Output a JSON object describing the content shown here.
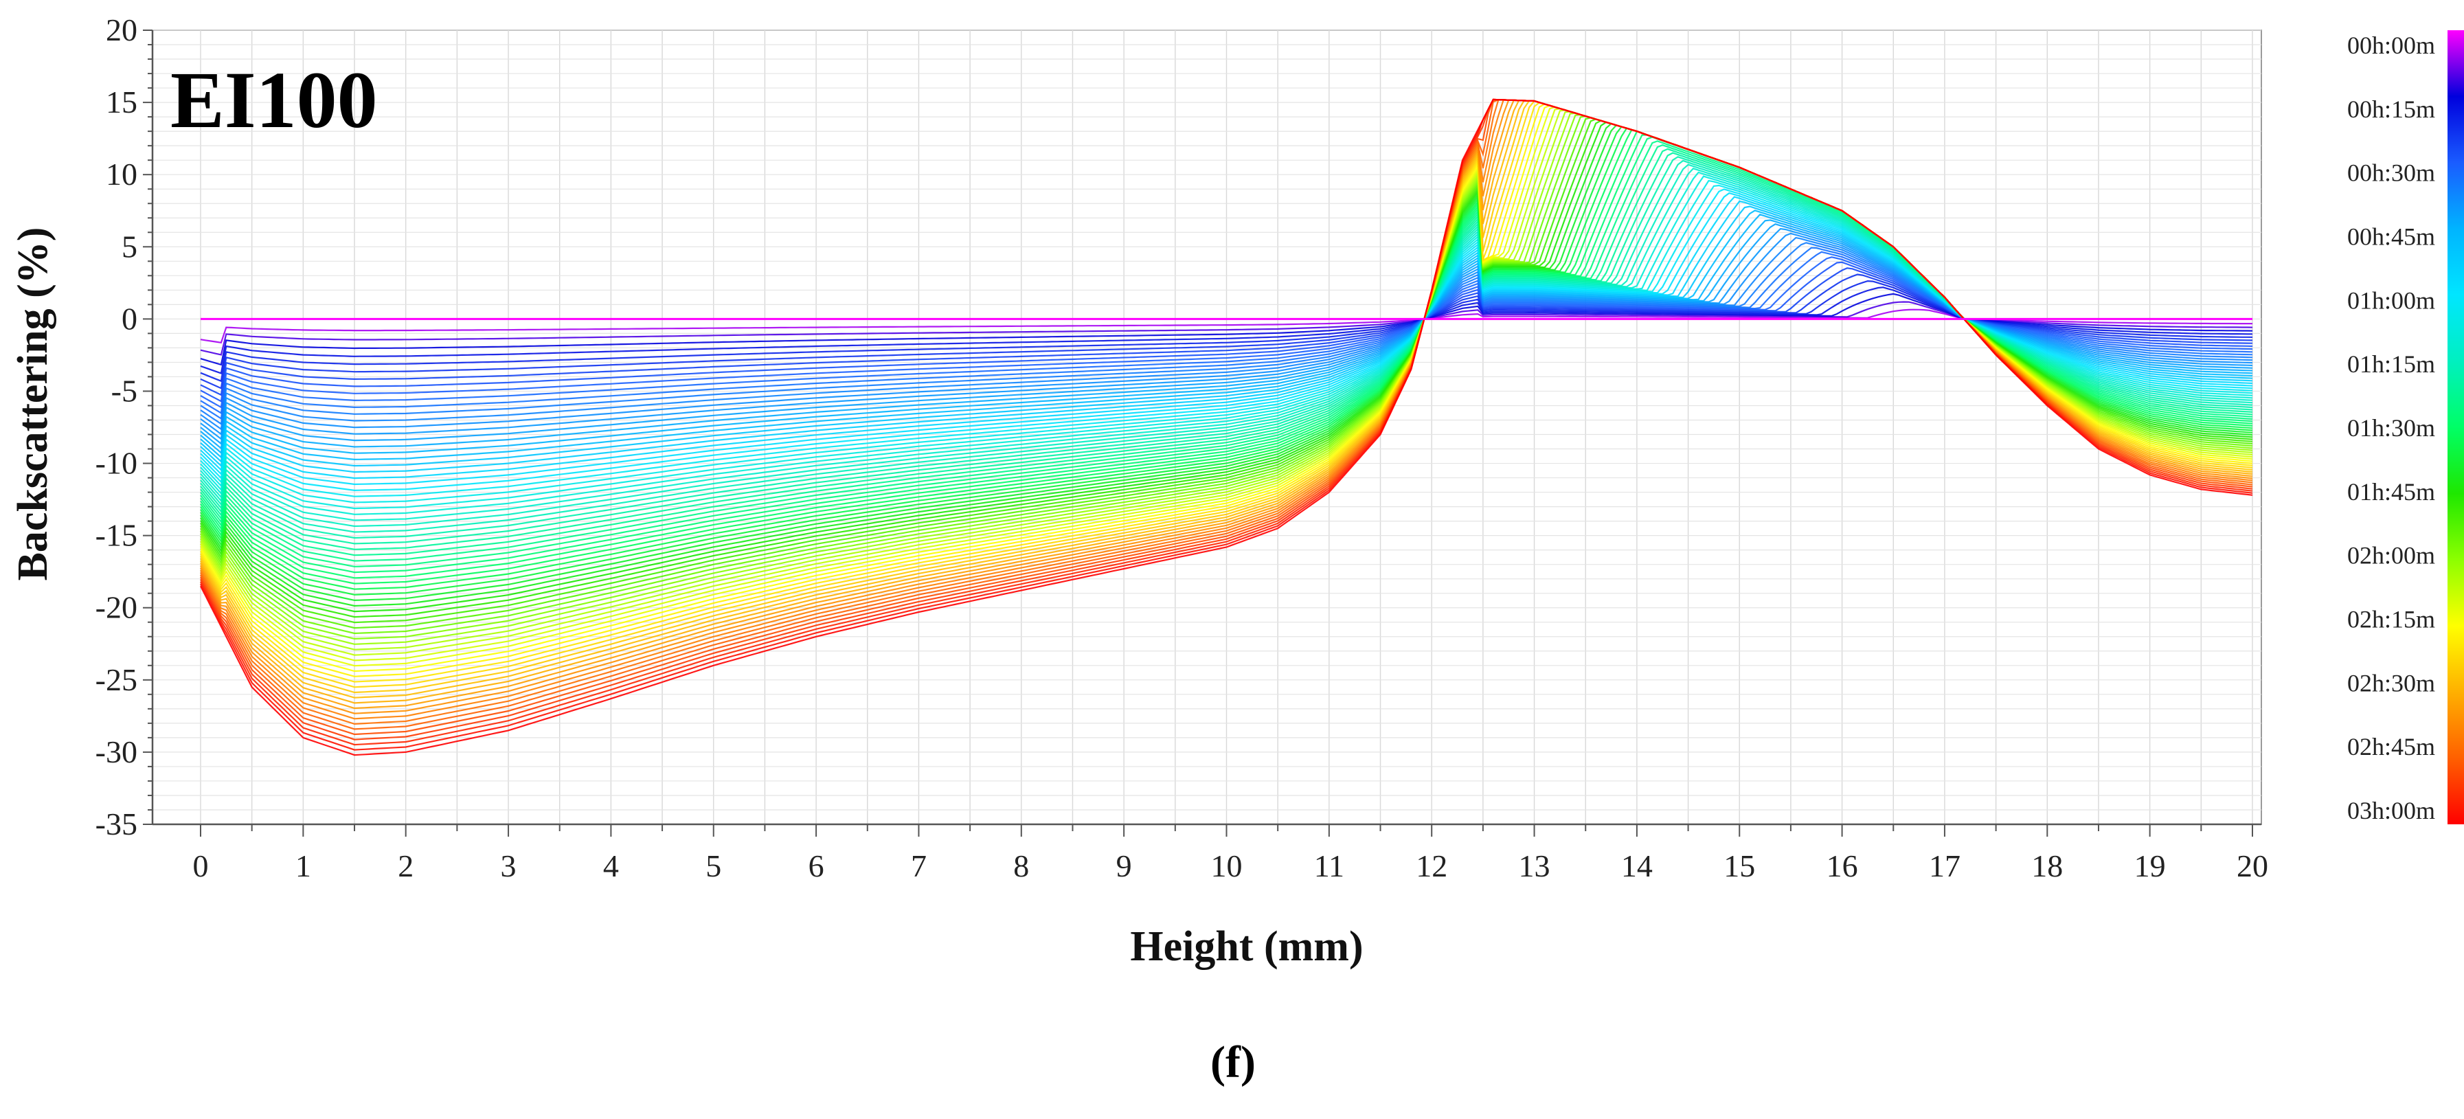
{
  "chart_data": {
    "type": "line",
    "title": "EI100",
    "xlabel": "Height (mm)",
    "ylabel": "Backscattering (%)",
    "caption": "(f)",
    "xlim": [
      0,
      20
    ],
    "ylim": [
      -35,
      20
    ],
    "xticks": [
      0,
      1,
      2,
      3,
      4,
      5,
      6,
      7,
      8,
      9,
      10,
      11,
      12,
      13,
      14,
      15,
      16,
      17,
      18,
      19,
      20
    ],
    "yticks": [
      20,
      15,
      10,
      5,
      0,
      -5,
      -10,
      -15,
      -20,
      -25,
      -30,
      -35
    ],
    "grid": true,
    "colorbar": {
      "label_position": "right",
      "labels": [
        "00h:00m",
        "00h:15m",
        "00h:30m",
        "00h:45m",
        "01h:00m",
        "01h:15m",
        "01h:30m",
        "01h:45m",
        "02h:00m",
        "02h:15m",
        "02h:30m",
        "02h:45m",
        "03h:00m"
      ],
      "colors": [
        "#ff00ff",
        "#0000dd",
        "#1a5cff",
        "#00b4ff",
        "#00e6ff",
        "#00f0c0",
        "#00ff66",
        "#1ee800",
        "#8cff00",
        "#ffff00",
        "#ffb000",
        "#ff6000",
        "#ff0000"
      ]
    },
    "time_range_h": [
      0,
      3
    ],
    "n_curves": 72,
    "series": [
      {
        "name": "00h:00m",
        "color": "#ff00ff",
        "x": [
          0,
          20
        ],
        "y": [
          0,
          0
        ]
      },
      {
        "name": "03h:00m",
        "color": "#ff0000",
        "x": [
          0,
          0.5,
          1.0,
          1.5,
          2.0,
          3.0,
          4.0,
          5.0,
          6.0,
          7.0,
          8.0,
          9.0,
          10.0,
          10.5,
          11.0,
          11.5,
          11.8,
          12.0,
          12.3,
          12.6,
          13.0,
          14.0,
          15.0,
          16.0,
          16.5,
          17.0,
          17.5,
          18.0,
          18.5,
          19.0,
          19.5,
          20.0
        ],
        "y": [
          -18.5,
          -25.5,
          -29.0,
          -30.2,
          -30.0,
          -28.5,
          -26.3,
          -24.0,
          -22.0,
          -20.3,
          -18.8,
          -17.3,
          -15.8,
          -14.5,
          -12.0,
          -8.0,
          -3.5,
          2.0,
          11.0,
          15.2,
          15.1,
          13.0,
          10.5,
          7.5,
          5.0,
          1.5,
          -2.5,
          -6.0,
          -9.0,
          -10.8,
          -11.8,
          -12.2
        ]
      }
    ]
  }
}
